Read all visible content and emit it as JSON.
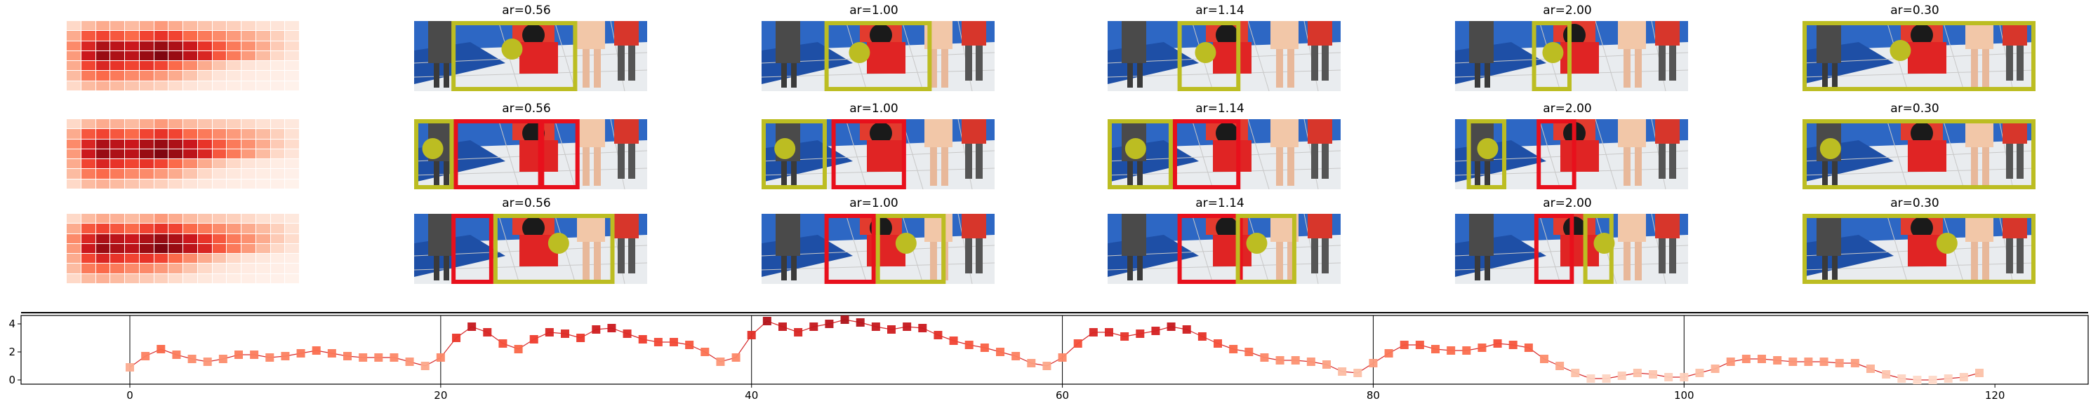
{
  "colors": {
    "heat_low": "#fff5f0",
    "heat_high": "#67000d",
    "box_yellow": "#bcbd22",
    "box_red": "#e8101c",
    "line": "#d62728"
  },
  "aspect_ratio_titles": [
    "ar=0.56",
    "ar=1.00",
    "ar=1.14",
    "ar=2.00",
    "ar=0.30"
  ],
  "heatmaps": {
    "rows": 7,
    "cols": 16,
    "values": [
      [
        0.15,
        0.25,
        0.3,
        0.28,
        0.25,
        0.3,
        0.35,
        0.3,
        0.25,
        0.22,
        0.2,
        0.18,
        0.15,
        0.12,
        0.1,
        0.08
      ],
      [
        0.3,
        0.55,
        0.6,
        0.55,
        0.5,
        0.6,
        0.65,
        0.6,
        0.5,
        0.45,
        0.4,
        0.35,
        0.3,
        0.25,
        0.18,
        0.12
      ],
      [
        0.4,
        0.7,
        0.85,
        0.8,
        0.75,
        0.85,
        0.9,
        0.85,
        0.75,
        0.65,
        0.55,
        0.45,
        0.38,
        0.3,
        0.2,
        0.14
      ],
      [
        0.35,
        0.75,
        0.9,
        0.85,
        0.8,
        0.9,
        0.95,
        0.9,
        0.8,
        0.7,
        0.55,
        0.45,
        0.35,
        0.25,
        0.15,
        0.1
      ],
      [
        0.3,
        0.6,
        0.7,
        0.65,
        0.6,
        0.65,
        0.6,
        0.5,
        0.4,
        0.3,
        0.22,
        0.15,
        0.1,
        0.08,
        0.05,
        0.04
      ],
      [
        0.25,
        0.45,
        0.5,
        0.45,
        0.4,
        0.4,
        0.35,
        0.3,
        0.22,
        0.15,
        0.1,
        0.08,
        0.06,
        0.05,
        0.04,
        0.03
      ],
      [
        0.15,
        0.25,
        0.28,
        0.25,
        0.22,
        0.2,
        0.18,
        0.14,
        0.1,
        0.08,
        0.06,
        0.05,
        0.04,
        0.03,
        0.03,
        0.02
      ]
    ]
  },
  "chart_data": {
    "type": "line",
    "title": "",
    "xlabel": "",
    "ylabel": "",
    "xlim": [
      -7,
      126
    ],
    "ylim": [
      -0.3,
      4.6
    ],
    "xticks": [
      0,
      20,
      40,
      60,
      80,
      100,
      120
    ],
    "yticks": [
      0,
      2,
      4
    ],
    "vertical_lines": [
      0,
      20,
      40,
      60,
      80,
      100
    ],
    "marker": "square",
    "series": [
      {
        "values": [
          0.9,
          1.7,
          2.2,
          1.8,
          1.5,
          1.3,
          1.5,
          1.8,
          1.8,
          1.6,
          1.7,
          1.9,
          2.1,
          1.9,
          1.7,
          1.6,
          1.6,
          1.6,
          1.3,
          1.0,
          1.6,
          3.0,
          3.8,
          3.4,
          2.6,
          2.2,
          2.9,
          3.4,
          3.3,
          3.0,
          3.6,
          3.7,
          3.3,
          2.9,
          2.7,
          2.7,
          2.5,
          2.0,
          1.3,
          1.6,
          3.2,
          4.2,
          3.8,
          3.4,
          3.8,
          4.0,
          4.3,
          4.1,
          3.8,
          3.6,
          3.8,
          3.7,
          3.2,
          2.8,
          2.5,
          2.3,
          2.0,
          1.7,
          1.2,
          1.0,
          1.6,
          2.6,
          3.4,
          3.4,
          3.1,
          3.3,
          3.5,
          3.8,
          3.6,
          3.1,
          2.6,
          2.2,
          2.0,
          1.6,
          1.4,
          1.4,
          1.3,
          1.1,
          0.6,
          0.5,
          1.2,
          1.9,
          2.5,
          2.5,
          2.2,
          2.1,
          2.1,
          2.3,
          2.6,
          2.5,
          2.3,
          1.5,
          1.0,
          0.5,
          0.1,
          0.1,
          0.3,
          0.5,
          0.4,
          0.2,
          0.2,
          0.5,
          0.8,
          1.3,
          1.5,
          1.5,
          1.4,
          1.3,
          1.3,
          1.3,
          1.2,
          1.2,
          0.8,
          0.4,
          0.1,
          0.0,
          0.0,
          0.1,
          0.2,
          0.5
        ]
      }
    ],
    "grid": false
  }
}
